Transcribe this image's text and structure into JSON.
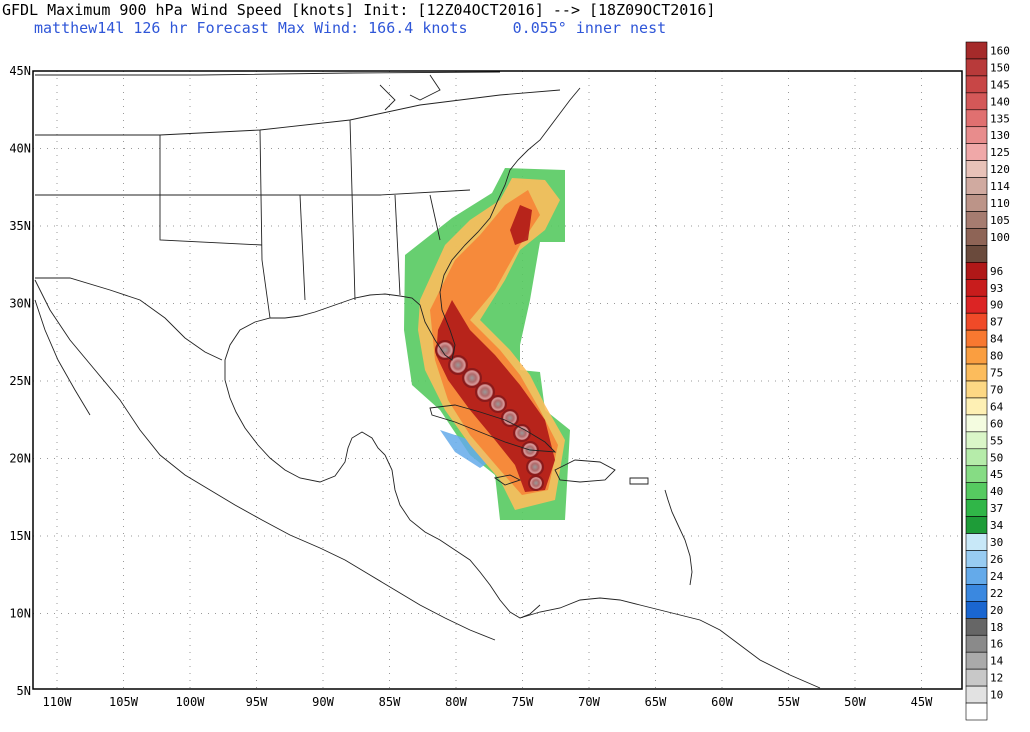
{
  "header": {
    "line1": "GFDL Maximum 900 hPa Wind Speed [knots] Init: [12Z04OCT2016] --> [18Z09OCT2016]",
    "line2": "matthew14l 126 hr Forecast Max Wind: 166.4 knots     0.055° inner nest"
  },
  "map": {
    "lon_labels": [
      "110W",
      "105W",
      "100W",
      "95W",
      "90W",
      "85W",
      "80W",
      "75W",
      "70W",
      "65W",
      "60W",
      "55W",
      "50W",
      "45W"
    ],
    "lat_labels": [
      "45N",
      "40N",
      "35N",
      "30N",
      "25N",
      "20N",
      "15N",
      "10N",
      "5N"
    ]
  },
  "colorbar": {
    "entries": [
      {
        "label": "160",
        "color": "#a52a2a"
      },
      {
        "label": "150",
        "color": "#b83a3a"
      },
      {
        "label": "145",
        "color": "#c84646"
      },
      {
        "label": "140",
        "color": "#d45858"
      },
      {
        "label": "135",
        "color": "#e07070"
      },
      {
        "label": "130",
        "color": "#e88c8c"
      },
      {
        "label": "125",
        "color": "#f0a8a8"
      },
      {
        "label": "120",
        "color": "#e8c2b8"
      },
      {
        "label": "114",
        "color": "#d0aaa0"
      },
      {
        "label": "110",
        "color": "#bc9488"
      },
      {
        "label": "105",
        "color": "#a67c70"
      },
      {
        "label": "100",
        "color": "#8e6456"
      },
      {
        "label": "",
        "color": "#6a4a3c"
      },
      {
        "label": "96",
        "color": "#b01818"
      },
      {
        "label": "93",
        "color": "#c81c1c"
      },
      {
        "label": "90",
        "color": "#dc2424"
      },
      {
        "label": "87",
        "color": "#f04a28"
      },
      {
        "label": "84",
        "color": "#f87830"
      },
      {
        "label": "80",
        "color": "#fa9e40"
      },
      {
        "label": "75",
        "color": "#fcbc5c"
      },
      {
        "label": "70",
        "color": "#fdd884"
      },
      {
        "label": "64",
        "color": "#fef0b4"
      },
      {
        "label": "60",
        "color": "#f4fce0"
      },
      {
        "label": "55",
        "color": "#daf6c8"
      },
      {
        "label": "50",
        "color": "#b6ecaa"
      },
      {
        "label": "45",
        "color": "#86dc84"
      },
      {
        "label": "40",
        "color": "#56ca60"
      },
      {
        "label": "37",
        "color": "#30b648"
      },
      {
        "label": "34",
        "color": "#1e9c38"
      },
      {
        "label": "30",
        "color": "#c8e8f8"
      },
      {
        "label": "26",
        "color": "#98ccf2"
      },
      {
        "label": "24",
        "color": "#64aaea"
      },
      {
        "label": "22",
        "color": "#3a88e0"
      },
      {
        "label": "20",
        "color": "#1a66d0"
      },
      {
        "label": "18",
        "color": "#666666"
      },
      {
        "label": "16",
        "color": "#8a8a8a"
      },
      {
        "label": "14",
        "color": "#aaaaaa"
      },
      {
        "label": "12",
        "color": "#c8c8c8"
      },
      {
        "label": "10",
        "color": "#e2e2e2"
      },
      {
        "label": "",
        "color": "#ffffff"
      }
    ]
  }
}
